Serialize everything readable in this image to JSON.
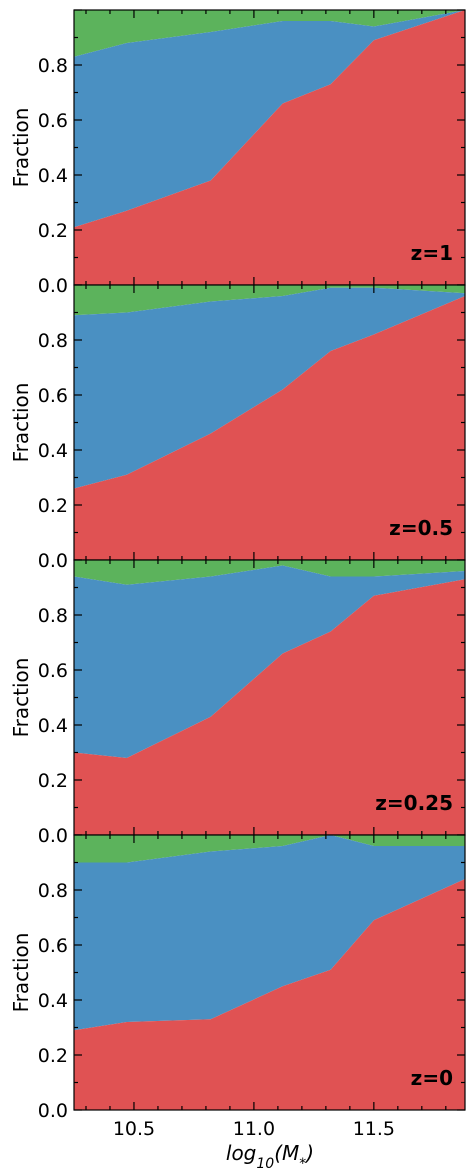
{
  "colors": {
    "red": "#e05253",
    "blue": "#4a90c2",
    "green": "#5cb35c"
  },
  "chart_data": [
    {
      "type": "area",
      "stacked": true,
      "label": "z=1",
      "x": [
        10.25,
        10.47,
        10.82,
        11.12,
        11.32,
        11.5,
        11.88
      ],
      "red_top": [
        0.21,
        0.27,
        0.38,
        0.66,
        0.73,
        0.89,
        1.0
      ],
      "blue_top": [
        0.83,
        0.88,
        0.92,
        0.96,
        0.96,
        0.94,
        1.0
      ],
      "ylabel": "Fraction",
      "ylim": [
        0,
        1
      ],
      "xlim": [
        10.25,
        11.88
      ]
    },
    {
      "type": "area",
      "stacked": true,
      "label": "z=0.5",
      "x": [
        10.25,
        10.47,
        10.82,
        11.12,
        11.32,
        11.5,
        11.88
      ],
      "red_top": [
        0.26,
        0.31,
        0.46,
        0.62,
        0.76,
        0.82,
        0.96
      ],
      "blue_top": [
        0.89,
        0.9,
        0.94,
        0.96,
        0.99,
        0.99,
        0.97
      ],
      "ylabel": "Fraction",
      "ylim": [
        0,
        1
      ],
      "xlim": [
        10.25,
        11.88
      ]
    },
    {
      "type": "area",
      "stacked": true,
      "label": "z=0.25",
      "x": [
        10.25,
        10.47,
        10.82,
        11.12,
        11.32,
        11.5,
        11.88
      ],
      "red_top": [
        0.3,
        0.28,
        0.43,
        0.66,
        0.74,
        0.87,
        0.93
      ],
      "blue_top": [
        0.94,
        0.91,
        0.94,
        0.98,
        0.94,
        0.94,
        0.96
      ],
      "ylabel": "Fraction",
      "ylim": [
        0,
        1
      ],
      "xlim": [
        10.25,
        11.88
      ]
    },
    {
      "type": "area",
      "stacked": true,
      "label": "z=0",
      "x": [
        10.25,
        10.47,
        10.82,
        11.12,
        11.32,
        11.5,
        11.88
      ],
      "red_top": [
        0.29,
        0.32,
        0.33,
        0.45,
        0.51,
        0.69,
        0.84
      ],
      "blue_top": [
        0.9,
        0.9,
        0.94,
        0.96,
        1.0,
        0.96,
        0.96
      ],
      "ylabel": "Fraction",
      "xlabel": "log10(M*)",
      "ylim": [
        0,
        1
      ],
      "xlim": [
        10.25,
        11.88
      ]
    }
  ],
  "y_tick_labels": [
    "0.0",
    "0.2",
    "0.4",
    "0.6",
    "0.8"
  ],
  "x_ticks": [
    10.5,
    11.0,
    11.5
  ],
  "x_tick_labels": [
    "10.5",
    "11.0",
    "11.5"
  ]
}
